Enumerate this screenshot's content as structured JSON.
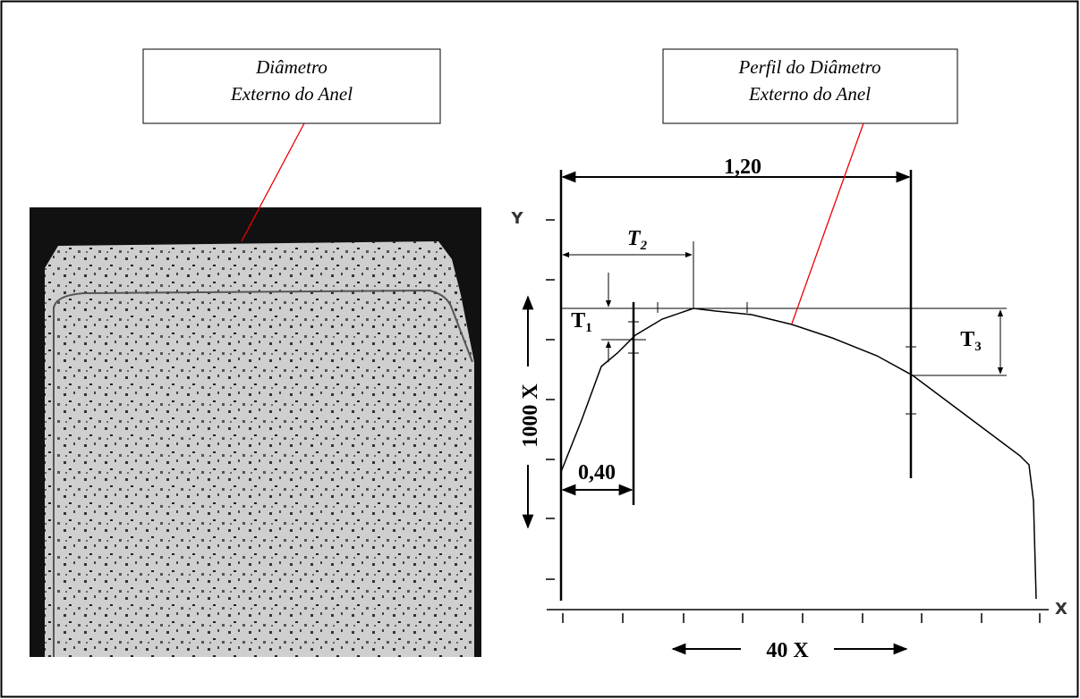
{
  "label_photo": {
    "line1": "Diâmetro",
    "line2": "Externo do Anel"
  },
  "label_profile": {
    "line1": "Perfil do Diâmetro",
    "line2": "Externo do Anel"
  },
  "dimensions": {
    "total_width": "1,20",
    "t2": {
      "letter": "T",
      "index": "2"
    },
    "t1": {
      "letter": "T",
      "index": "1"
    },
    "t3": {
      "letter": "T",
      "index": "3"
    },
    "offset": "0,40"
  },
  "axes": {
    "y": "Y",
    "x": "X",
    "vertical_scale": "1000 X",
    "horizontal_scale": "40 X"
  }
}
